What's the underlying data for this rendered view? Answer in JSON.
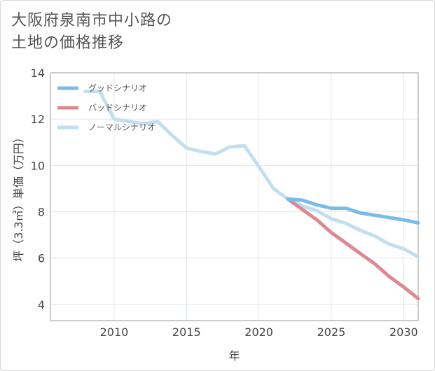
{
  "title": {
    "line1": "大阪府泉南市中小路の",
    "line2": "土地の価格推移"
  },
  "chart_data": {
    "type": "line",
    "xlabel": "年",
    "ylabel": "坪（3.3㎡）単価（万円）",
    "xlim": [
      2005.6,
      2031
    ],
    "ylim": [
      3.3,
      14
    ],
    "x_ticks": [
      2010,
      2015,
      2020,
      2025,
      2030
    ],
    "y_ticks": [
      4,
      6,
      8,
      10,
      12,
      14
    ],
    "grid": true,
    "legend_position": "top-left",
    "series": [
      {
        "name": "グッドシナリオ",
        "color": "#7bbbe9",
        "x": [
          2022,
          2023,
          2024,
          2025,
          2026,
          2027,
          2028,
          2029,
          2030,
          2031
        ],
        "values": [
          8.55,
          8.5,
          8.3,
          8.15,
          8.15,
          7.95,
          7.85,
          7.75,
          7.65,
          7.52
        ]
      },
      {
        "name": "バッドシナリオ",
        "color": "#db8a93",
        "x": [
          2022,
          2023,
          2024,
          2025,
          2026,
          2027,
          2028,
          2029,
          2030,
          2031
        ],
        "values": [
          8.55,
          8.1,
          7.65,
          7.1,
          6.65,
          6.2,
          5.75,
          5.2,
          4.75,
          4.25
        ]
      },
      {
        "name": "ノーマルシナリオ",
        "color": "#c3dfee",
        "x": [
          2008,
          2009,
          2010,
          2011,
          2012,
          2013,
          2014,
          2015,
          2016,
          2017,
          2018,
          2019,
          2020,
          2021,
          2022,
          2023,
          2024,
          2025,
          2026,
          2027,
          2028,
          2029,
          2030,
          2031
        ],
        "values": [
          13.2,
          13.2,
          12.0,
          11.9,
          11.8,
          11.9,
          11.3,
          10.75,
          10.6,
          10.5,
          10.8,
          10.85,
          9.95,
          9.0,
          8.55,
          8.25,
          8.05,
          7.7,
          7.5,
          7.2,
          6.95,
          6.6,
          6.4,
          6.05
        ]
      }
    ]
  }
}
